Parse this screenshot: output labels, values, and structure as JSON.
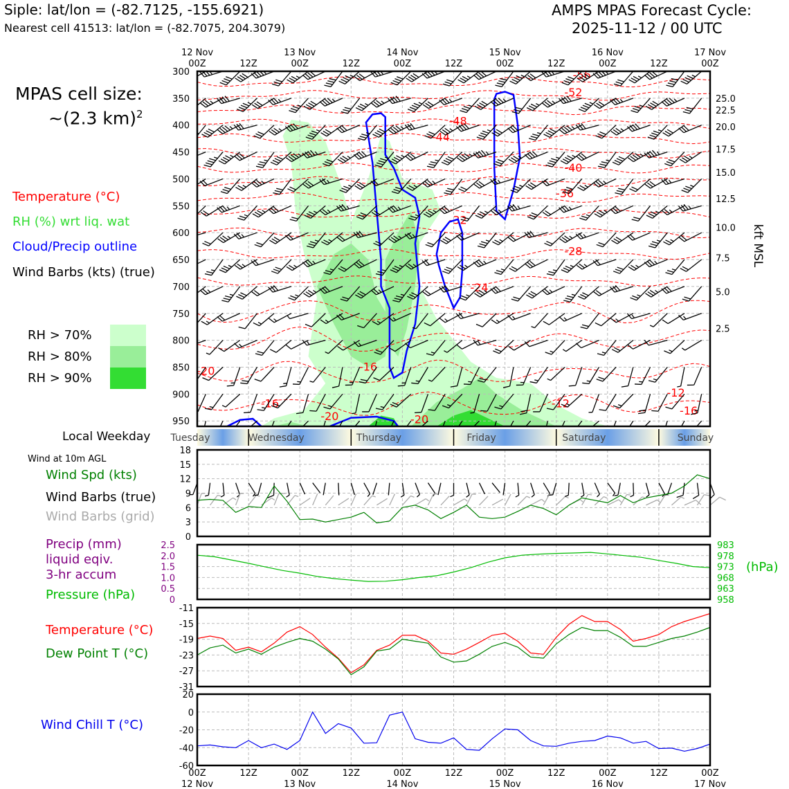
{
  "header": {
    "station_line": "Siple: lat/lon = (-82.7125, -155.6921)",
    "cell_line": "Nearest cell 41513: lat/lon = (-82.7075, 204.3079)",
    "cycle_title": "AMPS MPAS Forecast Cycle:",
    "cycle_time": "2025-11-12 / 00 UTC"
  },
  "cell_size": {
    "label": "MPAS cell size:",
    "value": "~(2.3 km)",
    "exponent": "2"
  },
  "colors": {
    "temperature": "#ff0000",
    "rh": "#33ee33",
    "cloud": "#0000ff",
    "dewpoint": "#008000",
    "wind_speed": "#008000",
    "pressure": "#00bb00",
    "precip": "#800080",
    "wind_chill": "#0000ee",
    "grid_barbs": "#aaaaaa",
    "rh70": "#ccffcc",
    "rh80": "#99ee99",
    "rh90": "#33dd33",
    "day_band_light": "#fffbe0",
    "day_band_dark": "#6a9fe6"
  },
  "legends": {
    "upper": {
      "temperature": "Temperature (°C)",
      "rh": "RH (%) wrt liq. wat",
      "cloud": "Cloud/Precip outline",
      "wind": "Wind Barbs (kts) (true)"
    },
    "rh_levels": [
      "RH > 70%",
      "RH > 80%",
      "RH > 90%"
    ],
    "weekday_label": "Local Weekday",
    "wind_note": "Wind at 10m AGL",
    "wind_speed": "Wind Spd (kts)",
    "wind_barbs_true": "Wind Barbs (true)",
    "wind_barbs_grid": "Wind Barbs (grid)",
    "precip_1": "Precip (mm)",
    "precip_2": "liquid eqiv.",
    "precip_3": "3-hr accum",
    "pressure": "Pressure (hPa)",
    "pressure_units": "(hPa)",
    "temperature": "Temperature (°C)",
    "dewpoint": "Dew Point T (°C)",
    "wind_chill": "Wind Chill T (°C)"
  },
  "time_axis": {
    "hours": [
      0,
      12,
      24,
      36,
      48,
      60,
      72,
      84,
      96,
      108,
      120
    ],
    "top_labels": [
      [
        "12 Nov",
        "00Z"
      ],
      [
        "",
        "12Z"
      ],
      [
        "13 Nov",
        "00Z"
      ],
      [
        "",
        "12Z"
      ],
      [
        "14 Nov",
        "00Z"
      ],
      [
        "",
        "12Z"
      ],
      [
        "15 Nov",
        "00Z"
      ],
      [
        "",
        "12Z"
      ],
      [
        "16 Nov",
        "00Z"
      ],
      [
        "",
        "12Z"
      ],
      [
        "17 Nov",
        "00Z"
      ]
    ],
    "bottom_labels": [
      [
        "00Z",
        "12 Nov"
      ],
      [
        "12Z",
        ""
      ],
      [
        "00Z",
        "13 Nov"
      ],
      [
        "12Z",
        ""
      ],
      [
        "00Z",
        "14 Nov"
      ],
      [
        "12Z",
        ""
      ],
      [
        "00Z",
        "15 Nov"
      ],
      [
        "12Z",
        ""
      ],
      [
        "00Z",
        "16 Nov"
      ],
      [
        "12Z",
        ""
      ],
      [
        "00Z",
        "17 Nov"
      ]
    ]
  },
  "weekdays": [
    "Tuesday",
    "Wednesday",
    "Thursday",
    "Friday",
    "Saturday",
    "Sunday"
  ],
  "chart_data": [
    {
      "type": "contour",
      "name": "time-height cross section",
      "pressure_levels": [
        300,
        350,
        400,
        450,
        500,
        550,
        600,
        650,
        700,
        750,
        800,
        850,
        900,
        950
      ],
      "ylim": [
        300,
        960
      ],
      "ylabel_right": "kft MSL",
      "right_ticks": [
        {
          "p": 350,
          "label": "25.0"
        },
        {
          "p": 372,
          "label": "22.5"
        },
        {
          "p": 403,
          "label": "20.0"
        },
        {
          "p": 445,
          "label": "17.5"
        },
        {
          "p": 488,
          "label": "15.0"
        },
        {
          "p": 537,
          "label": "12.5"
        },
        {
          "p": 590,
          "label": "10.0"
        },
        {
          "p": 647,
          "label": "7.5"
        },
        {
          "p": 710,
          "label": "5.0"
        },
        {
          "p": 778,
          "label": "2.5"
        }
      ],
      "temperature_labels": [
        {
          "t": 90,
          "p": 308,
          "v": "-56"
        },
        {
          "t": 88,
          "p": 340,
          "v": "-52"
        },
        {
          "t": 61,
          "p": 393,
          "v": "-48"
        },
        {
          "t": 57,
          "p": 423,
          "v": "-44"
        },
        {
          "t": 88,
          "p": 480,
          "v": "-40"
        },
        {
          "t": 86,
          "p": 528,
          "v": "-36"
        },
        {
          "t": 61,
          "p": 577,
          "v": "-32"
        },
        {
          "t": 88,
          "p": 635,
          "v": "-28"
        },
        {
          "t": 66,
          "p": 703,
          "v": "-24"
        },
        {
          "t": 2,
          "p": 858,
          "v": "-20"
        },
        {
          "t": 52,
          "p": 948,
          "v": "-20"
        },
        {
          "t": 17,
          "p": 918,
          "v": "-16"
        },
        {
          "t": 40,
          "p": 850,
          "v": "-16"
        },
        {
          "t": 85,
          "p": 918,
          "v": "-12"
        },
        {
          "t": 115,
          "p": 932,
          "v": "-16"
        },
        {
          "t": 112,
          "p": 898,
          "v": "-12"
        },
        {
          "t": 31,
          "p": 942,
          "v": "-20"
        }
      ]
    },
    {
      "type": "line",
      "name": "10m wind",
      "ylim": [
        0,
        18
      ],
      "yticks": [
        0,
        3,
        6,
        9,
        12,
        15,
        18
      ],
      "x": [
        0,
        3,
        6,
        9,
        12,
        15,
        18,
        21,
        24,
        27,
        30,
        33,
        36,
        39,
        42,
        45,
        48,
        51,
        54,
        57,
        60,
        63,
        66,
        69,
        72,
        75,
        78,
        81,
        84,
        87,
        90,
        93,
        96,
        99,
        102,
        105,
        108,
        111,
        114,
        117,
        120
      ],
      "series": [
        {
          "name": "Wind Spd (kts)",
          "values": [
            7.5,
            7.7,
            7.5,
            5.0,
            6.2,
            6.0,
            10.5,
            7.3,
            3.5,
            3.6,
            3.0,
            3.5,
            4.0,
            5.0,
            2.8,
            3.2,
            6.0,
            6.5,
            5.5,
            3.7,
            5.0,
            6.5,
            4.0,
            3.7,
            4.0,
            5.2,
            6.5,
            5.8,
            4.5,
            6.5,
            8.0,
            7.5,
            7.0,
            8.5,
            7.0,
            8.0,
            8.5,
            9.0,
            10.5,
            12.8,
            12.0
          ]
        }
      ]
    },
    {
      "type": "line",
      "name": "pressure and precip",
      "ylim_precip": [
        0,
        2.5
      ],
      "yticks_precip": [
        "0",
        "0.5",
        "1.0",
        "1.5",
        "2.0",
        "2.5"
      ],
      "ylim_pressure": [
        958,
        983
      ],
      "yticks_pressure": [
        "958",
        "963",
        "968",
        "973",
        "978",
        "983"
      ],
      "x": [
        0,
        4,
        8,
        12,
        16,
        20,
        24,
        28,
        32,
        36,
        40,
        44,
        48,
        52,
        56,
        60,
        64,
        68,
        72,
        76,
        80,
        84,
        88,
        92,
        96,
        100,
        104,
        108,
        112,
        116,
        120
      ],
      "series": [
        {
          "name": "Pressure (hPa)",
          "values": [
            978.2,
            977.5,
            976.0,
            974.5,
            972.8,
            971.2,
            970.0,
            968.5,
            967.5,
            966.8,
            966.2,
            966.3,
            967.0,
            968.0,
            968.8,
            970.5,
            972.5,
            975.0,
            977.0,
            978.2,
            978.7,
            979.0,
            979.2,
            979.5,
            978.8,
            978.0,
            977.2,
            975.8,
            974.5,
            973.0,
            972.5
          ]
        }
      ]
    },
    {
      "type": "line",
      "name": "temperature and dewpoint",
      "ylim": [
        -31,
        -11
      ],
      "yticks": [
        "-11",
        "-15",
        "-19",
        "-23",
        "-27",
        "-31"
      ],
      "x": [
        0,
        3,
        6,
        9,
        12,
        15,
        18,
        21,
        24,
        27,
        30,
        33,
        36,
        39,
        42,
        45,
        48,
        51,
        54,
        57,
        60,
        63,
        66,
        69,
        72,
        75,
        78,
        81,
        84,
        87,
        90,
        93,
        96,
        99,
        102,
        105,
        108,
        111,
        114,
        117,
        120
      ],
      "series": [
        {
          "name": "Temperature (°C)",
          "values": [
            -18.8,
            -18.2,
            -18.8,
            -21.8,
            -21.0,
            -22.2,
            -20.0,
            -17.2,
            -15.8,
            -17.8,
            -21.0,
            -23.8,
            -27.5,
            -25.5,
            -21.8,
            -20.5,
            -18.0,
            -18.0,
            -19.5,
            -22.5,
            -22.8,
            -21.5,
            -19.8,
            -18.0,
            -17.5,
            -19.5,
            -22.5,
            -22.8,
            -18.5,
            -15.2,
            -13.0,
            -14.5,
            -14.5,
            -16.5,
            -19.5,
            -18.8,
            -17.8,
            -15.8,
            -14.5,
            -13.5,
            -12.5
          ]
        },
        {
          "name": "Dew Point T (°C)",
          "values": [
            -23.0,
            -21.2,
            -20.5,
            -22.5,
            -21.5,
            -22.8,
            -21.0,
            -19.8,
            -18.8,
            -19.5,
            -21.5,
            -24.0,
            -28.0,
            -26.0,
            -22.0,
            -21.5,
            -19.0,
            -19.5,
            -20.0,
            -23.5,
            -24.8,
            -24.5,
            -22.8,
            -20.8,
            -19.8,
            -21.0,
            -23.5,
            -23.8,
            -20.2,
            -17.8,
            -16.0,
            -16.8,
            -16.8,
            -18.5,
            -20.8,
            -20.8,
            -19.8,
            -18.8,
            -18.2,
            -17.2,
            -16.0
          ]
        }
      ]
    },
    {
      "type": "line",
      "name": "wind chill",
      "ylim": [
        -60,
        20
      ],
      "yticks": [
        "20",
        "0",
        "-20",
        "-40",
        "-60"
      ],
      "x": [
        0,
        3,
        6,
        9,
        12,
        15,
        18,
        21,
        24,
        27,
        30,
        33,
        36,
        39,
        42,
        45,
        48,
        51,
        54,
        57,
        60,
        63,
        66,
        69,
        72,
        75,
        78,
        81,
        84,
        87,
        90,
        93,
        96,
        99,
        102,
        105,
        108,
        111,
        114,
        117,
        120
      ],
      "series": [
        {
          "name": "Wind Chill T (°C)",
          "values": [
            -38,
            -37,
            -39,
            -40,
            -32,
            -40,
            -36,
            -42,
            -32,
            0,
            -24,
            -13,
            -18,
            -35,
            -34.5,
            -3.5,
            0,
            -30,
            -34,
            -35,
            -29,
            -42,
            -43,
            -30,
            -19,
            -20,
            -32,
            -38,
            -38.5,
            -35,
            -33,
            -32,
            -27,
            -29,
            -35,
            -33,
            -41,
            -40.5,
            -44,
            -41,
            -36
          ]
        }
      ]
    }
  ]
}
